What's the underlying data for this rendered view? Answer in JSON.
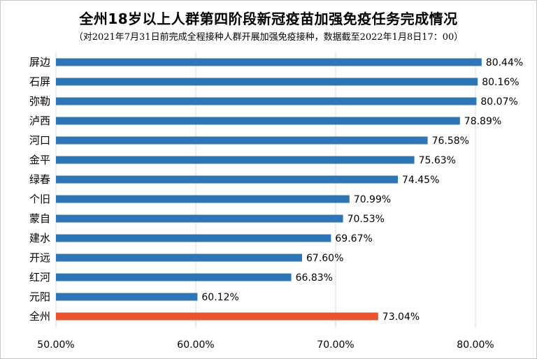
{
  "chart_data": {
    "type": "bar",
    "orientation": "horizontal",
    "title": "全州18岁以上人群第四阶段新冠疫苗加强免疫任务完成情况",
    "subtitle": "（对2021年7月31日前完成全程接种人群开展加强免疫接种，数据截至2022年1月8日17：00）",
    "categories": [
      "屏边",
      "石屏",
      "弥勒",
      "泸西",
      "河口",
      "金平",
      "绿春",
      "个旧",
      "蒙自",
      "建水",
      "开远",
      "红河",
      "元阳",
      "全州"
    ],
    "values": [
      80.44,
      80.16,
      80.07,
      78.89,
      76.58,
      75.63,
      74.45,
      70.99,
      70.53,
      69.67,
      67.6,
      66.83,
      60.12,
      73.04
    ],
    "value_labels": [
      "80.44%",
      "80.16%",
      "80.07%",
      "78.89%",
      "76.58%",
      "75.63%",
      "74.45%",
      "70.99%",
      "70.53%",
      "69.67%",
      "67.60%",
      "66.83%",
      "60.12%",
      "73.04%"
    ],
    "xlim": [
      50,
      80
    ],
    "xticks": [
      50,
      60,
      70,
      80
    ],
    "xtick_labels": [
      "50.00%",
      "60.00%",
      "70.00%",
      "80.00%"
    ],
    "grid": true,
    "colors": {
      "bar": "#2e75b6",
      "highlight": "#e8552f",
      "grid": "#d9d9d9"
    },
    "highlight_category": "全州"
  }
}
